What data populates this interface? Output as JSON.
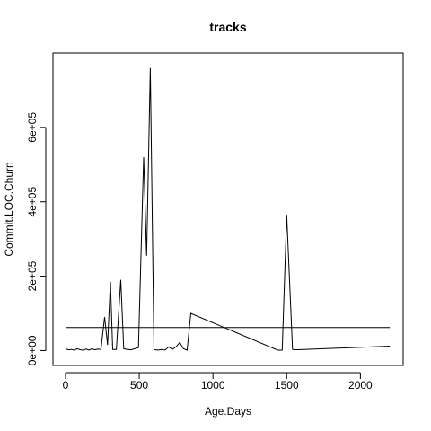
{
  "chart_data": {
    "type": "line",
    "title": "tracks",
    "xlabel": "Age.Days",
    "ylabel": "Commit.LOC.Churn",
    "xlim": [
      -85,
      2290
    ],
    "ylim": [
      -40000,
      800000
    ],
    "x_ticks": [
      {
        "value": 0,
        "label": "0"
      },
      {
        "value": 500,
        "label": "500"
      },
      {
        "value": 1000,
        "label": "1000"
      },
      {
        "value": 1500,
        "label": "1500"
      },
      {
        "value": 2000,
        "label": "2000"
      }
    ],
    "y_ticks": [
      {
        "value": 0,
        "label": "0e+00"
      },
      {
        "value": 200000,
        "label": "2e+05"
      },
      {
        "value": 400000,
        "label": "4e+05"
      },
      {
        "value": 600000,
        "label": "6e+05"
      }
    ],
    "grid": false,
    "legend": "none",
    "series": [
      {
        "line_color": "#000000",
        "points": [
          [
            0,
            5000
          ],
          [
            20,
            2000
          ],
          [
            40,
            3000
          ],
          [
            60,
            1000
          ],
          [
            80,
            5000
          ],
          [
            100,
            2000
          ],
          [
            120,
            1000
          ],
          [
            140,
            4000
          ],
          [
            160,
            1000
          ],
          [
            180,
            5000
          ],
          [
            200,
            2000
          ],
          [
            220,
            4000
          ],
          [
            240,
            3000
          ],
          [
            265,
            90000
          ],
          [
            285,
            15000
          ],
          [
            305,
            185000
          ],
          [
            320,
            3000
          ],
          [
            345,
            3000
          ],
          [
            375,
            190000
          ],
          [
            395,
            5000
          ],
          [
            420,
            3000
          ],
          [
            445,
            2000
          ],
          [
            470,
            5000
          ],
          [
            495,
            8000
          ],
          [
            530,
            520000
          ],
          [
            550,
            255000
          ],
          [
            575,
            760000
          ],
          [
            600,
            3000
          ],
          [
            625,
            1000
          ],
          [
            650,
            3000
          ],
          [
            675,
            1000
          ],
          [
            700,
            10000
          ],
          [
            725,
            3000
          ],
          [
            750,
            10000
          ],
          [
            775,
            22000
          ],
          [
            800,
            5000
          ],
          [
            825,
            1000
          ],
          [
            850,
            100000
          ],
          [
            1440,
            1000
          ],
          [
            1470,
            1000
          ],
          [
            1500,
            365000
          ],
          [
            1540,
            3000
          ],
          [
            1560,
            2000
          ],
          [
            2200,
            12000
          ]
        ]
      },
      {
        "line_color": "#000000",
        "points": [
          [
            0,
            62000
          ],
          [
            2200,
            62000
          ]
        ]
      }
    ]
  }
}
